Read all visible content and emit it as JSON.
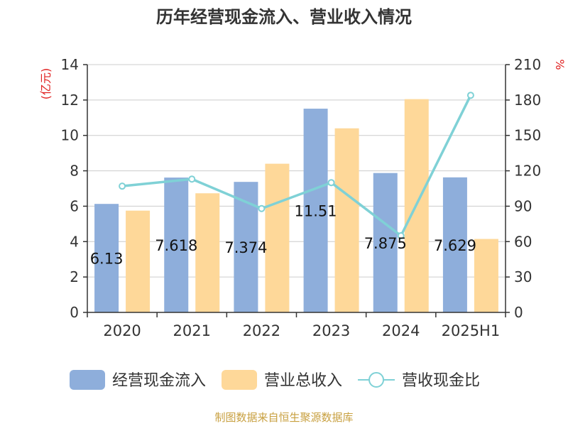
{
  "title": "历年经营现金流入、营业收入情况",
  "source": "制图数据来自恒生聚源数据库",
  "chart_data": {
    "type": "bar",
    "categories": [
      "2020",
      "2021",
      "2022",
      "2023",
      "2024",
      "2025H1"
    ],
    "left_axis": {
      "unit": "(亿元)",
      "ylim": [
        0,
        14
      ],
      "ticks": [
        0,
        2,
        4,
        6,
        8,
        10,
        12,
        14
      ]
    },
    "right_axis": {
      "unit": "%",
      "ylim": [
        0,
        210
      ],
      "ticks": [
        0,
        30,
        60,
        90,
        120,
        150,
        180,
        210
      ]
    },
    "grid": true,
    "legend_position": "bottom",
    "series": [
      {
        "name": "经营现金流入",
        "type": "bar",
        "axis": "left",
        "color": "#8eaedb",
        "values": [
          6.13,
          7.618,
          7.374,
          11.51,
          7.875,
          7.629
        ],
        "labels": [
          "6.13",
          "7.618",
          "7.374",
          "11.51",
          "7.875",
          "7.629"
        ]
      },
      {
        "name": "营业总收入",
        "type": "bar",
        "axis": "left",
        "color": "#fed899",
        "values": [
          5.75,
          6.73,
          8.4,
          10.4,
          12.05,
          4.15
        ]
      },
      {
        "name": "营收现金比",
        "type": "line",
        "axis": "right",
        "color": "#7fd1d6",
        "values": [
          107,
          113,
          88,
          110,
          65,
          184
        ]
      }
    ]
  }
}
